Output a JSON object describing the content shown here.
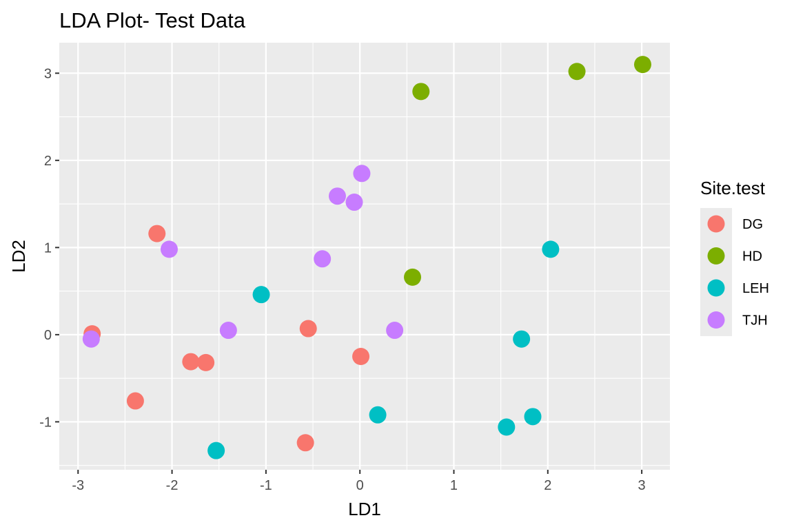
{
  "chart_data": {
    "type": "scatter",
    "title": "LDA Plot- Test Data",
    "xlabel": "LD1",
    "ylabel": "LD2",
    "xlim": [
      -3.2,
      3.3
    ],
    "ylim": [
      -1.55,
      3.35
    ],
    "xticks": [
      -3,
      -2,
      -1,
      0,
      1,
      2,
      3
    ],
    "xtick_labels": [
      "-3",
      "-2",
      "-1",
      "0",
      "1",
      "2",
      "3"
    ],
    "yticks": [
      -1,
      0,
      1,
      2,
      3
    ],
    "ytick_labels": [
      "-1",
      "0",
      "1",
      "2",
      "3"
    ],
    "grid": true,
    "legend": {
      "title": "Site.test",
      "placement": "right"
    },
    "series": [
      {
        "name": "DG",
        "color": "#F8766D",
        "points": [
          {
            "x": -2.85,
            "y": 0.01
          },
          {
            "x": -2.16,
            "y": 1.16
          },
          {
            "x": -2.39,
            "y": -0.76
          },
          {
            "x": -1.8,
            "y": -0.31
          },
          {
            "x": -1.64,
            "y": -0.32
          },
          {
            "x": -0.55,
            "y": 0.07
          },
          {
            "x": 0.01,
            "y": -0.25
          },
          {
            "x": -0.58,
            "y": -1.24
          }
        ]
      },
      {
        "name": "HD",
        "color": "#7CAE00",
        "points": [
          {
            "x": 0.65,
            "y": 2.79
          },
          {
            "x": 2.31,
            "y": 3.02
          },
          {
            "x": 3.01,
            "y": 3.1
          },
          {
            "x": 0.56,
            "y": 0.66
          }
        ]
      },
      {
        "name": "LEH",
        "color": "#00BFC4",
        "points": [
          {
            "x": -1.05,
            "y": 0.46
          },
          {
            "x": -1.53,
            "y": -1.33
          },
          {
            "x": 0.19,
            "y": -0.92
          },
          {
            "x": 1.56,
            "y": -1.06
          },
          {
            "x": 1.84,
            "y": -0.94
          },
          {
            "x": 1.72,
            "y": -0.05
          },
          {
            "x": 2.03,
            "y": 0.98
          }
        ]
      },
      {
        "name": "TJH",
        "color": "#C77CFF",
        "points": [
          {
            "x": -2.86,
            "y": -0.05
          },
          {
            "x": -2.03,
            "y": 0.98
          },
          {
            "x": -1.4,
            "y": 0.05
          },
          {
            "x": -0.4,
            "y": 0.87
          },
          {
            "x": -0.24,
            "y": 1.59
          },
          {
            "x": -0.06,
            "y": 1.52
          },
          {
            "x": 0.02,
            "y": 1.85
          },
          {
            "x": 0.37,
            "y": 0.05
          }
        ]
      }
    ],
    "colors": {
      "panel": "#EBEBEB",
      "grid": "#FFFFFF",
      "tick": "#333333"
    }
  }
}
